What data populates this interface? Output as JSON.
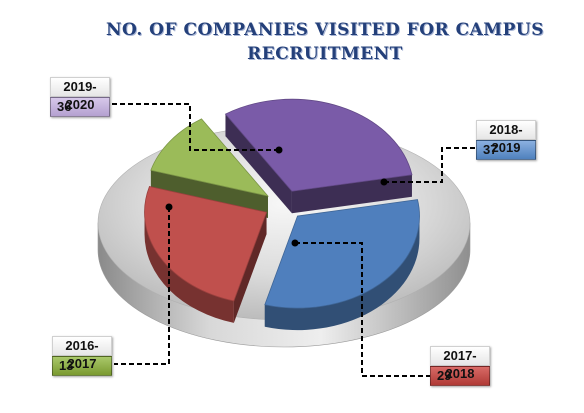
{
  "chart_data": {
    "type": "pie",
    "title": "NO. OF COMPANIES VISITED FOR CAMPUS RECRUITMENT",
    "categories": [
      "2019-2020",
      "2018-2019",
      "2017-2018",
      "2016-2017"
    ],
    "values": [
      36,
      37,
      29,
      13
    ],
    "colors": [
      "#7a5ba8",
      "#4f7fbd",
      "#c0504d",
      "#9bbb59"
    ],
    "style": "3d exploded pie",
    "legend": "none"
  }
}
